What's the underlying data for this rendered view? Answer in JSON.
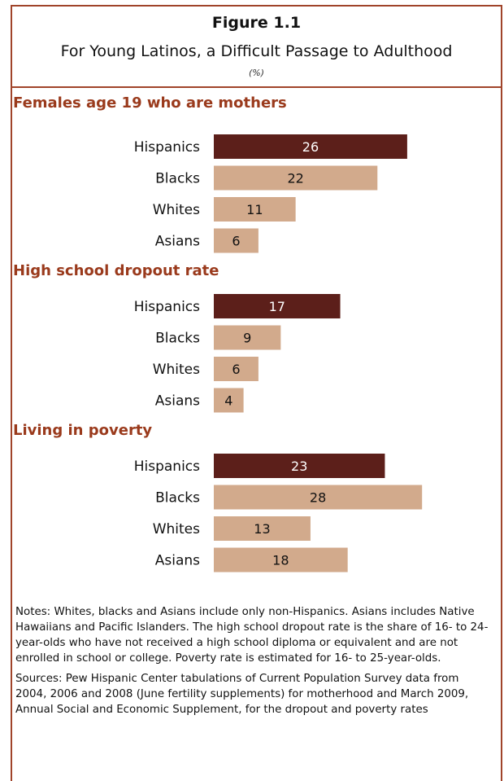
{
  "header": {
    "title": "Figure 1.1",
    "subtitle": "For Young Latinos, a Difficult Passage to Adulthood",
    "unit": "(%)"
  },
  "colors": {
    "hispanic_bar": "#5c1f1a",
    "other_bar": "#d2aa8c",
    "section_title": "#9a3a1c",
    "frame": "#a0442a"
  },
  "chart_data": [
    {
      "type": "bar",
      "title": "Females age 19 who are mothers",
      "categories": [
        "Hispanics",
        "Blacks",
        "Whites",
        "Asians"
      ],
      "values": [
        26,
        22,
        11,
        6
      ],
      "xlim": [
        0,
        30
      ]
    },
    {
      "type": "bar",
      "title": "High school dropout rate",
      "categories": [
        "Hispanics",
        "Blacks",
        "Whites",
        "Asians"
      ],
      "values": [
        17,
        9,
        6,
        4
      ],
      "xlim": [
        0,
        30
      ]
    },
    {
      "type": "bar",
      "title": "Living in poverty",
      "categories": [
        "Hispanics",
        "Blacks",
        "Whites",
        "Asians"
      ],
      "values": [
        23,
        28,
        13,
        18
      ],
      "xlim": [
        0,
        30
      ]
    }
  ],
  "notes": {
    "notes_text": "Notes: Whites, blacks and Asians include only non-Hispanics. Asians includes Native Hawaiians and Pacific Islanders. The high school dropout rate is the share of 16- to 24-year-olds who have not received a high school diploma or equivalent and are not enrolled in school or college. Poverty rate is estimated for 16- to 25-year-olds.",
    "sources_text": "Sources:  Pew Hispanic Center tabulations of Current Population Survey data from 2004, 2006 and 2008 (June fertility supplements) for motherhood and March 2009, Annual Social and Economic Supplement, for the dropout and poverty rates"
  }
}
